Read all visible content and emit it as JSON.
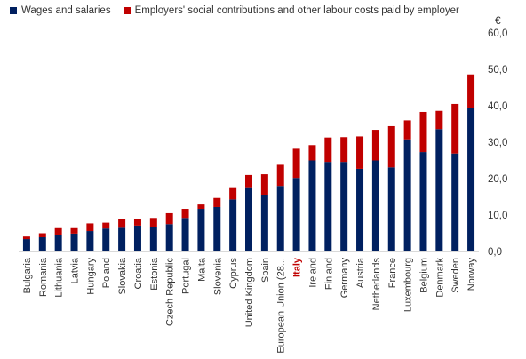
{
  "chart_data": {
    "type": "bar",
    "stacked": true,
    "unit": "€",
    "ylim": [
      0,
      60
    ],
    "yticks": [
      "0,0",
      "10,0",
      "20,0",
      "30,0",
      "40,0",
      "50,0",
      "60,0"
    ],
    "grid": false,
    "legend_position": "top",
    "categories": [
      "Bulgaria",
      "Romania",
      "Lithuania",
      "Latvia",
      "Hungary",
      "Poland",
      "Slovakia",
      "Croatia",
      "Estonia",
      "Czech Republic",
      "Portugal",
      "Malta",
      "Slovenia",
      "Cyprus",
      "United Kingdom",
      "Spain",
      "European Union (28...",
      "Italy",
      "Ireland",
      "Finland",
      "Germany",
      "Austria",
      "Netherlands",
      "France",
      "Luxembourg",
      "Belgium",
      "Denmark",
      "Sweden",
      "Norway"
    ],
    "highlight_category": "Italy",
    "highlight_color": "#c00000",
    "series": [
      {
        "name": "Wages and salaries",
        "color": "#002060",
        "values": [
          3.4,
          3.9,
          4.5,
          4.9,
          5.6,
          6.3,
          6.5,
          7.1,
          6.8,
          7.5,
          9.2,
          11.7,
          12.2,
          14.3,
          17.4,
          15.6,
          18.0,
          20.2,
          25.0,
          24.6,
          24.6,
          22.7,
          25.0,
          23.1,
          30.8,
          27.3,
          33.6,
          26.9,
          39.3
        ]
      },
      {
        "name": "Employers' social contributions and other labour costs paid by employer",
        "color": "#c00000",
        "values": [
          0.7,
          1.1,
          1.9,
          1.5,
          2.1,
          1.6,
          2.3,
          1.8,
          2.4,
          3.0,
          2.5,
          1.2,
          2.5,
          3.1,
          3.6,
          5.6,
          5.8,
          8.0,
          4.2,
          6.7,
          6.8,
          8.9,
          8.4,
          11.3,
          5.2,
          11.0,
          5.0,
          13.6,
          9.3
        ]
      }
    ]
  }
}
